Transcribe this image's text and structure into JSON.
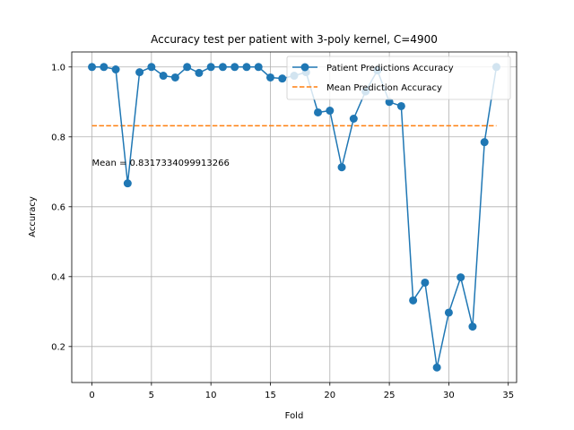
{
  "chart_data": {
    "type": "line",
    "title": "Accuracy test per patient with 3-poly kernel, C=4900",
    "xlabel": "Fold",
    "ylabel": "Accuracy",
    "xlim": [
      -1.7,
      35.7
    ],
    "ylim": [
      0.097,
      1.043
    ],
    "xticks": [
      0,
      5,
      10,
      15,
      20,
      25,
      30,
      35
    ],
    "yticks": [
      0.2,
      0.4,
      0.6,
      0.8,
      1.0
    ],
    "xtick_labels": [
      "0",
      "5",
      "10",
      "15",
      "20",
      "25",
      "30",
      "35"
    ],
    "ytick_labels": [
      "0.2",
      "0.4",
      "0.6",
      "0.8",
      "1.0"
    ],
    "grid": true,
    "legend_position": "top-right",
    "series": [
      {
        "name": "Patient Predictions Accuracy",
        "color": "#1f77b4",
        "style": "solid-with-markers",
        "x": [
          0,
          1,
          2,
          3,
          4,
          5,
          6,
          7,
          8,
          9,
          10,
          11,
          12,
          13,
          14,
          15,
          16,
          17,
          18,
          19,
          20,
          21,
          22,
          23,
          24,
          25,
          26,
          27,
          28,
          29,
          30,
          31,
          32,
          33,
          34
        ],
        "y": [
          1.0,
          1.0,
          0.993,
          0.667,
          0.985,
          1.0,
          0.975,
          0.97,
          1.0,
          0.983,
          1.0,
          1.0,
          1.0,
          1.0,
          1.0,
          0.97,
          0.967,
          0.975,
          0.985,
          0.87,
          0.875,
          0.713,
          0.852,
          0.93,
          0.99,
          0.9,
          0.888,
          0.332,
          0.383,
          0.14,
          0.297,
          0.398,
          0.257,
          0.785,
          1.0
        ]
      },
      {
        "name": "Mean Prediction Accuracy",
        "color": "#ff7f0e",
        "style": "dashed",
        "x": [
          0,
          34
        ],
        "y": [
          0.8317334099913266,
          0.8317334099913266
        ]
      }
    ],
    "annotations": [
      {
        "text": "Mean = 0.8317334099913266",
        "x": 0,
        "y": 0.7
      }
    ]
  }
}
